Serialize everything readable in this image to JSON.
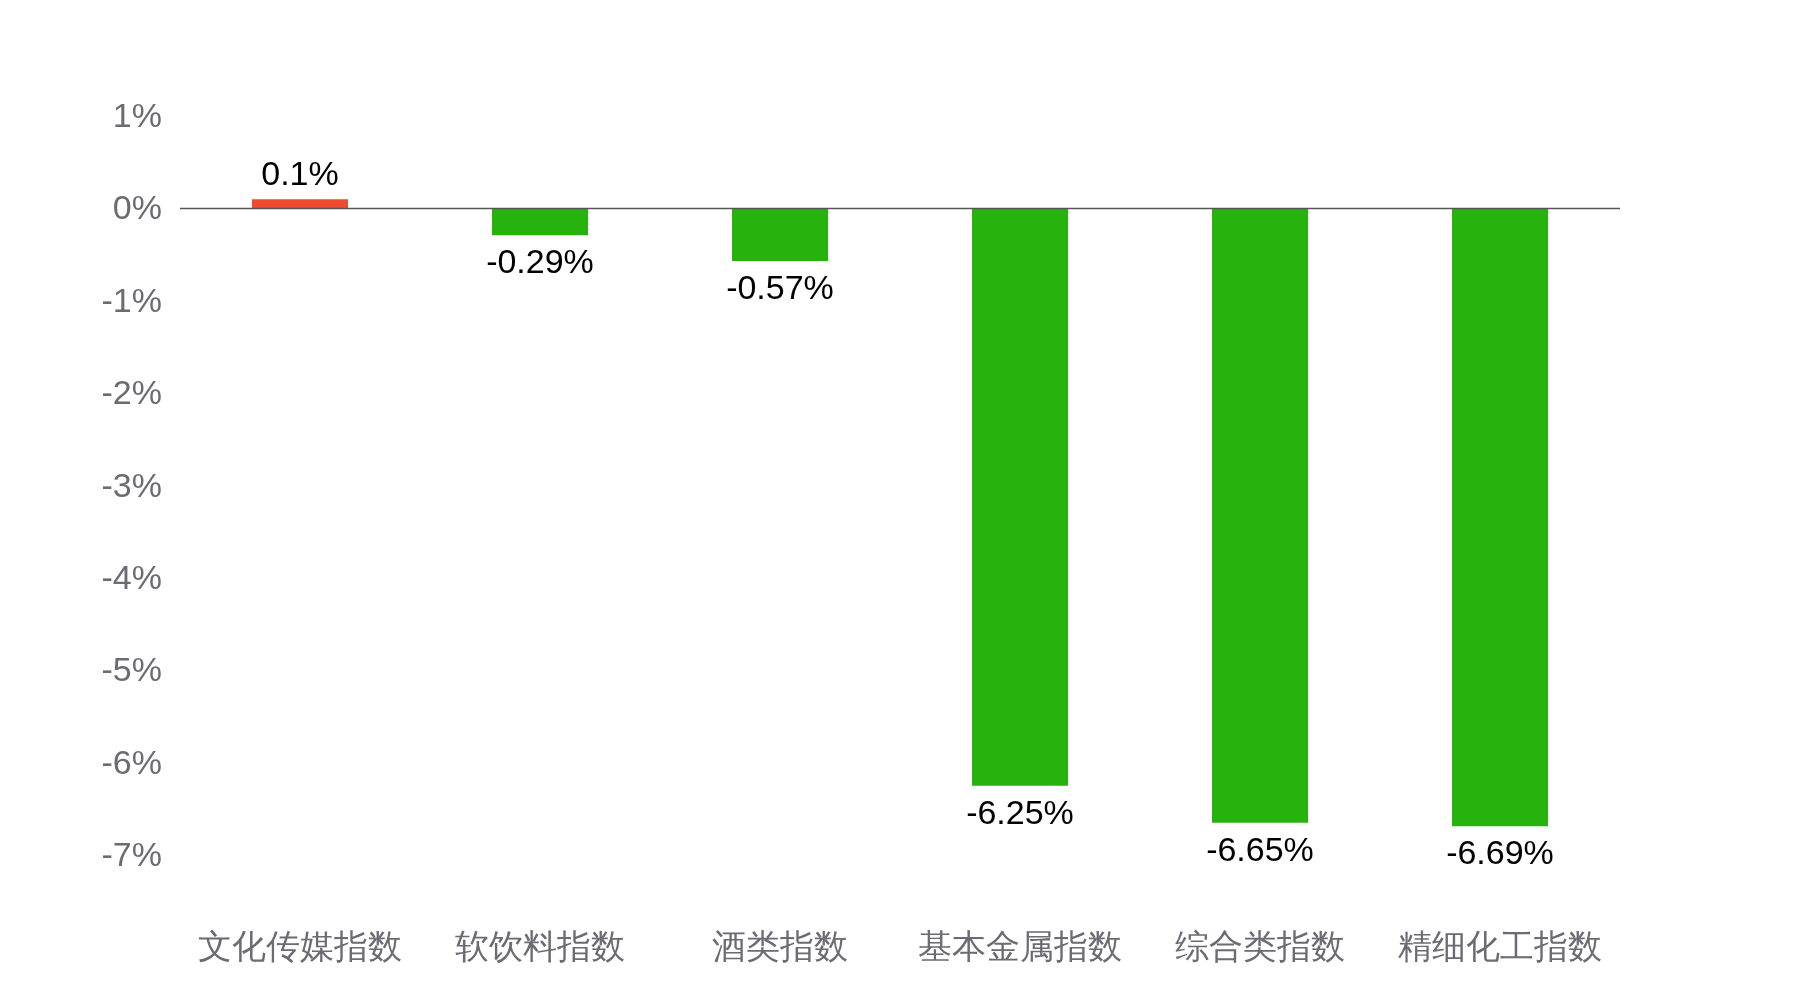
{
  "chart_data": {
    "type": "bar",
    "categories": [
      "文化传媒指数",
      "软饮料指数",
      "酒类指数",
      "基本金属指数",
      "综合类指数",
      "精细化工指数"
    ],
    "values": [
      0.1,
      -0.29,
      -0.57,
      -6.25,
      -6.65,
      -6.69
    ],
    "colors": [
      "#f04b32",
      "#26b30e",
      "#26b30e",
      "#26b30e",
      "#26b30e",
      "#26b30e"
    ],
    "value_labels": [
      "0.1%",
      "-0.29%",
      "-0.57%",
      "-6.25%",
      "-6.65%",
      "-6.69%"
    ],
    "ylim": [
      -7,
      1
    ],
    "yticks": [
      {
        "value": 1,
        "label": "1%"
      },
      {
        "value": 0,
        "label": "0%"
      },
      {
        "value": -1,
        "label": "-1%"
      },
      {
        "value": -2,
        "label": "-2%"
      },
      {
        "value": -3,
        "label": "-3%"
      },
      {
        "value": -4,
        "label": "-4%"
      },
      {
        "value": -5,
        "label": "-5%"
      },
      {
        "value": -6,
        "label": "-6%"
      },
      {
        "value": -7,
        "label": "-7%"
      }
    ],
    "ref_lines": [
      {
        "axis": "y",
        "value": 0,
        "color": "#555555"
      }
    ],
    "legend": false
  }
}
